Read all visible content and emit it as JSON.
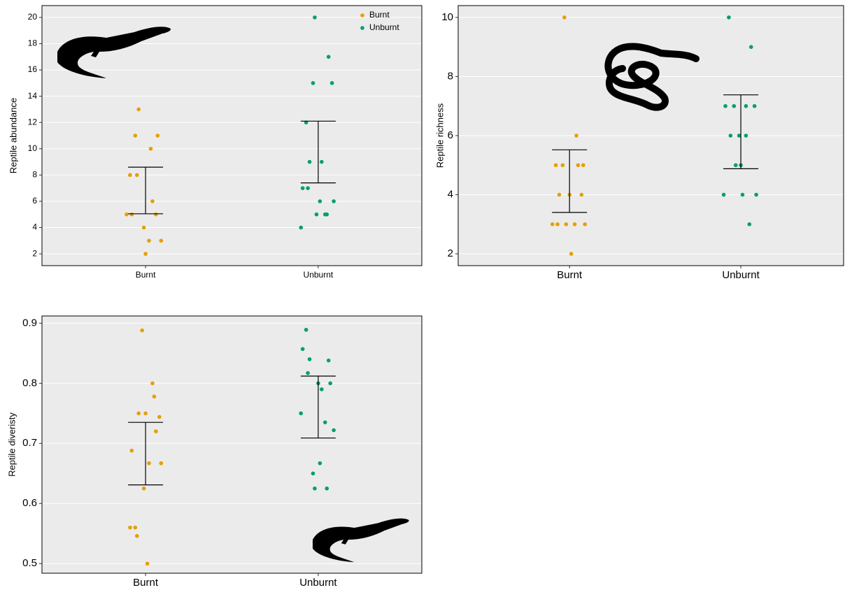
{
  "chart_data": [
    {
      "type": "scatter",
      "y_label": "Reptile abundance",
      "xlim": [
        0.4,
        2.6
      ],
      "ylim": [
        1.1,
        20.9
      ],
      "xticks": [
        {
          "value": 1,
          "label": "Burnt"
        },
        {
          "value": 2,
          "label": "Unburnt"
        }
      ],
      "yticks": [
        2,
        4,
        6,
        8,
        10,
        12,
        14,
        16,
        18,
        20
      ],
      "grid": true,
      "legend": "top-right",
      "series": [
        {
          "name": "Burnt",
          "color": "#E69F00",
          "x": [
            0.96,
            0.94,
            1.07,
            1.03,
            0.91,
            0.95,
            1.04,
            0.89,
            0.92,
            1.06,
            0.99,
            1.02,
            1.09,
            1.0
          ],
          "values": [
            13,
            11,
            11,
            10,
            8,
            8,
            6,
            5,
            5,
            5,
            4,
            3,
            3,
            2
          ]
        },
        {
          "name": "Unburnt",
          "color": "#009E73",
          "x": [
            1.98,
            2.06,
            1.97,
            2.08,
            1.93,
            1.95,
            2.02,
            1.91,
            1.94,
            2.01,
            2.09,
            1.99,
            2.04,
            2.05,
            1.9
          ],
          "values": [
            20,
            17,
            15,
            15,
            12,
            9,
            9,
            7,
            7,
            6,
            6,
            5,
            5,
            5,
            4
          ]
        }
      ],
      "error_bars": [
        {
          "x": 1,
          "low": 5.05,
          "high": 8.6
        },
        {
          "x": 2,
          "low": 7.4,
          "high": 12.1
        }
      ]
    },
    {
      "type": "scatter",
      "y_label": "Reptile richness",
      "xlim": [
        0.35,
        2.6
      ],
      "ylim": [
        1.6,
        10.4
      ],
      "xticks": [
        {
          "value": 1,
          "label": "Burnt"
        },
        {
          "value": 2,
          "label": "Unburnt"
        }
      ],
      "yticks": [
        2,
        4,
        6,
        8,
        10
      ],
      "grid": true,
      "series": [
        {
          "color": "#E69F00",
          "x": [
            0.97,
            1.04,
            0.92,
            0.96,
            1.05,
            1.08,
            0.94,
            1.0,
            1.07,
            0.9,
            0.93,
            0.98,
            1.03,
            1.09,
            1.01
          ],
          "values": [
            10,
            6,
            5,
            5,
            5,
            5,
            4,
            4,
            4,
            3,
            3,
            3,
            3,
            3,
            2
          ]
        },
        {
          "color": "#009E73",
          "x": [
            1.93,
            2.06,
            1.91,
            1.96,
            2.03,
            2.08,
            1.94,
            1.99,
            2.03,
            1.97,
            2.0,
            1.9,
            2.01,
            2.09,
            2.05
          ],
          "values": [
            10,
            9,
            7,
            7,
            7,
            7,
            6,
            6,
            6,
            5,
            5,
            4,
            4,
            4,
            3
          ]
        }
      ],
      "error_bars": [
        {
          "x": 1,
          "low": 3.4,
          "high": 5.52
        },
        {
          "x": 2,
          "low": 4.88,
          "high": 7.38
        }
      ]
    },
    {
      "type": "scatter",
      "y_label": "Reptile diveristy",
      "xlim": [
        0.4,
        2.6
      ],
      "ylim": [
        0.484,
        0.912
      ],
      "xticks": [
        {
          "value": 1,
          "label": "Burnt"
        },
        {
          "value": 2,
          "label": "Unburnt"
        }
      ],
      "yticks": [
        0.5,
        0.6,
        0.7,
        0.8,
        0.9
      ],
      "grid": true,
      "series": [
        {
          "color": "#E69F00",
          "x": [
            0.98,
            1.04,
            1.05,
            0.96,
            1.0,
            1.08,
            1.06,
            0.92,
            1.02,
            1.09,
            0.99,
            0.91,
            0.94,
            0.95,
            1.01
          ],
          "values": [
            0.888,
            0.8,
            0.778,
            0.75,
            0.75,
            0.744,
            0.72,
            0.688,
            0.667,
            0.667,
            0.625,
            0.56,
            0.56,
            0.546,
            0.5
          ]
        },
        {
          "color": "#009E73",
          "x": [
            1.93,
            1.91,
            1.95,
            2.06,
            1.94,
            2.0,
            2.07,
            2.02,
            1.9,
            2.04,
            2.09,
            2.01,
            1.97,
            1.98,
            2.05
          ],
          "values": [
            0.889,
            0.857,
            0.84,
            0.838,
            0.817,
            0.8,
            0.8,
            0.79,
            0.75,
            0.735,
            0.722,
            0.667,
            0.65,
            0.625,
            0.625
          ]
        }
      ],
      "error_bars": [
        {
          "x": 1,
          "low": 0.631,
          "high": 0.735
        },
        {
          "x": 2,
          "low": 0.709,
          "high": 0.812
        }
      ]
    }
  ]
}
